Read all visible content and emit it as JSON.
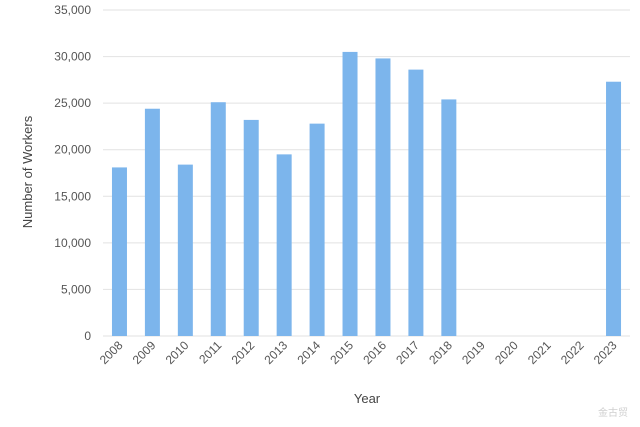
{
  "chart_data": {
    "type": "bar",
    "title": "",
    "xlabel": "Year",
    "ylabel": "Number of Workers",
    "ylim": [
      0,
      35000
    ],
    "yticks": [
      0,
      5000,
      10000,
      15000,
      20000,
      25000,
      30000,
      35000
    ],
    "grid": true,
    "legend": "none",
    "bar_color": "#7cb5ec",
    "categories": [
      "2008",
      "2009",
      "2010",
      "2011",
      "2012",
      "2013",
      "2014",
      "2015",
      "2016",
      "2017",
      "2018",
      "2019",
      "2020",
      "2021",
      "2022",
      "2023"
    ],
    "values": [
      18100,
      24400,
      18400,
      25100,
      23200,
      19500,
      22800,
      30500,
      29800,
      28600,
      25400,
      null,
      null,
      null,
      null,
      27300
    ]
  },
  "watermark": "金古贸"
}
